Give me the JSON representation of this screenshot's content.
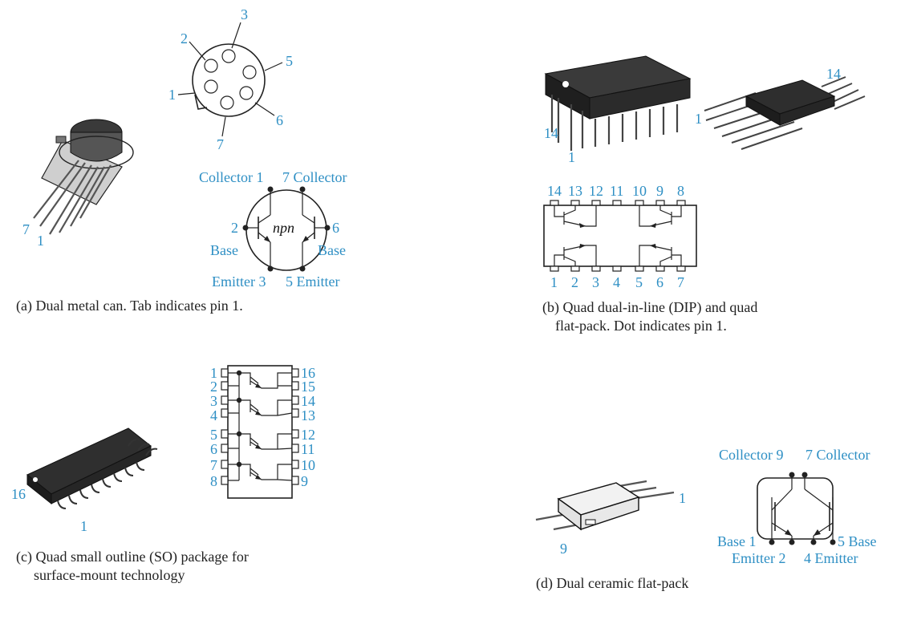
{
  "colors": {
    "label": "#2e8fc4",
    "ink": "#222222",
    "body": "#2a2a2a"
  },
  "panel_a": {
    "pin_labels": [
      "1",
      "2",
      "3",
      "5",
      "6",
      "7"
    ],
    "lead_labels": [
      "7",
      "1"
    ],
    "collector_left": "Collector 1",
    "collector_right": "7 Collector",
    "base_left_num": "2",
    "base_left": "Base",
    "base_right_num": "6",
    "base_right": "Base",
    "emitter_left": "Emitter 3",
    "emitter_right": "5 Emitter",
    "npn": "npn",
    "caption": "(a) Dual metal can. Tab indicates pin 1."
  },
  "panel_b": {
    "dip_labels": [
      "14",
      "1"
    ],
    "flat_labels": [
      "14",
      "1"
    ],
    "top_pins": [
      "14",
      "13",
      "12",
      "11",
      "10",
      "9",
      "8"
    ],
    "bottom_pins": [
      "1",
      "2",
      "3",
      "4",
      "5",
      "6",
      "7"
    ],
    "caption_line1": "(b) Quad dual-in-line (DIP) and quad",
    "caption_line2": "flat-pack. Dot indicates pin 1."
  },
  "panel_c": {
    "pkg_labels": [
      "16",
      "1"
    ],
    "left_pins": [
      "1",
      "2",
      "3",
      "4",
      "5",
      "6",
      "7",
      "8"
    ],
    "right_pins": [
      "16",
      "15",
      "14",
      "13",
      "12",
      "11",
      "10",
      "9"
    ],
    "caption_line1": "(c) Quad small outline (SO) package for",
    "caption_line2": "surface-mount technology"
  },
  "panel_d": {
    "pkg_labels": [
      "1",
      "9"
    ],
    "collector_left": "Collector 9",
    "collector_right": "7 Collector",
    "base_left": "Base 1",
    "base_right": "5 Base",
    "emitter_left": "Emitter 2",
    "emitter_right": "4 Emitter",
    "caption": "(d) Dual ceramic flat-pack"
  }
}
